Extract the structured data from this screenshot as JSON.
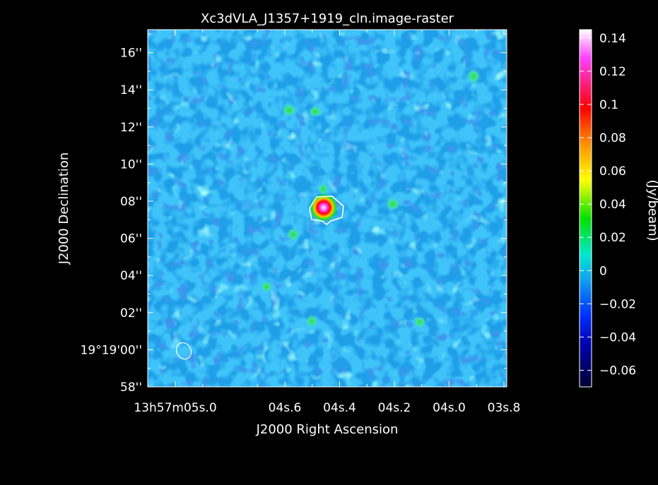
{
  "chart_data": {
    "type": "heatmap",
    "title": "Xc3dVLA_J1357+1919_cln.image-raster",
    "xlabel": "J2000 Right Ascension",
    "ylabel": "J2000 Declination",
    "x_ticks": [
      "13h57m05s.0",
      "04s.6",
      "04s.4",
      "04s.2",
      "04s.0",
      "03s.8"
    ],
    "y_ticks": [
      "58''",
      "19°19'00''",
      "02''",
      "04''",
      "06''",
      "08''",
      "10''",
      "12''",
      "14''",
      "16''"
    ],
    "colorbar": {
      "label": "(Jy/beam)",
      "ticks": [
        "0.14",
        "0.12",
        "0.1",
        "0.08",
        "0.06",
        "0.04",
        "0.02",
        "0",
        "−0.02",
        "−0.04",
        "−0.06"
      ],
      "range": [
        -0.07,
        0.145
      ]
    },
    "source": {
      "peak": 0.14,
      "ra": "13h57m04s.45",
      "dec": "19°19'07.4''"
    },
    "colors": {
      "background": "#000000",
      "field": "#1e9fe8",
      "contour": "#ffffff"
    }
  }
}
